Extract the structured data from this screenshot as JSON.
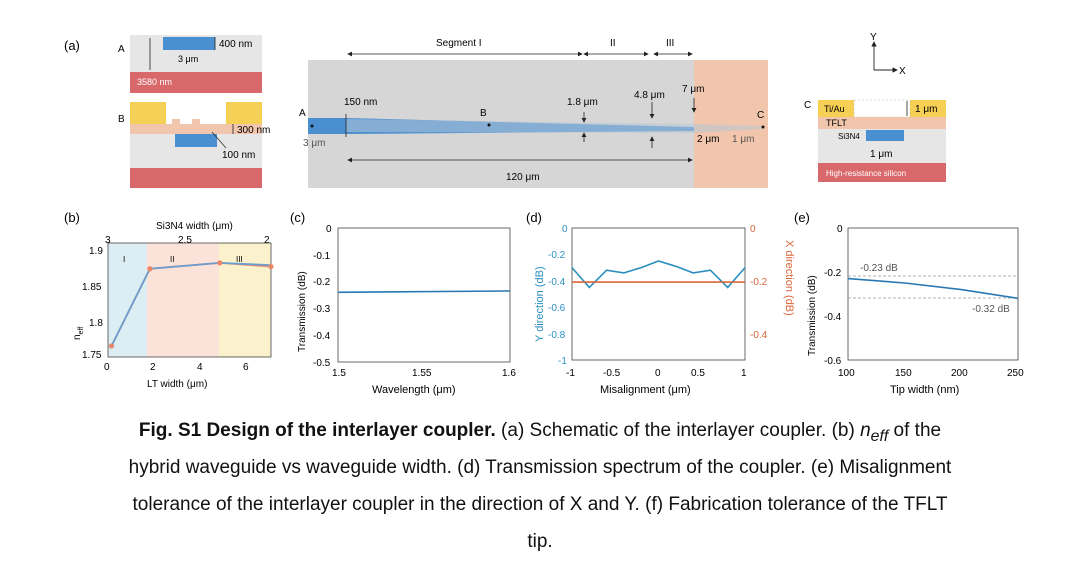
{
  "panel_a": {
    "label": "(a)",
    "cross_section_A": {
      "letter": "A",
      "dim_400": "400 nm",
      "dim_3um": "3 μm",
      "dim_3580": "3580 nm"
    },
    "cross_section_B": {
      "letter": "B",
      "dim_300": "300 nm",
      "dim_100": "100 nm"
    },
    "cross_section_C": {
      "letter": "C",
      "tiau": "Ti/Au",
      "tflt": "TFLT",
      "si3n4": "Si3N4",
      "dim_1um_top": "1 μm",
      "dim_1um": "1 μm",
      "substrate": "High-resistance silicon"
    },
    "top_view": {
      "segment_I": "Segment I",
      "segment_II": "II",
      "segment_III": "III",
      "dim_150nm": "150 nm",
      "dim_1_8": "1.8 μm",
      "dim_4_8": "4.8 μm",
      "dim_7": "7 μm",
      "dim_3um": "3 μm",
      "dim_2um": "2 μm",
      "dim_1um": "1 μm",
      "dim_120": "120 μm",
      "point_A": "A",
      "point_B": "B",
      "point_C": "C"
    },
    "axes": {
      "x": "X",
      "y": "Y"
    }
  },
  "panel_b": {
    "label": "(b)",
    "xlabel": "LT width (μm)",
    "top_label": "Si3N4 width (μm)",
    "xticks": [
      "0",
      "2",
      "4",
      "6"
    ],
    "top_ticks": [
      "3",
      "2.5",
      "2"
    ],
    "yticks": [
      "1.75",
      "1.8",
      "1.85",
      "1.9"
    ],
    "regions": [
      "I",
      "II",
      "III"
    ]
  },
  "panel_c": {
    "label": "(c)",
    "xlabel": "Wavelength (μm)",
    "ylabel": "Transmission (dB)",
    "xticks": [
      "1.5",
      "1.55",
      "1.6"
    ],
    "yticks": [
      "0",
      "-0.1",
      "-0.2",
      "-0.3",
      "-0.4",
      "-0.5"
    ]
  },
  "panel_d": {
    "label": "(d)",
    "xlabel": "Misalignment (μm)",
    "ylabel_left": "Y direction (dB)",
    "ylabel_right": "X direction (dB)",
    "xticks": [
      "-1",
      "-0.5",
      "0",
      "0.5",
      "1"
    ],
    "yticks_left": [
      "0",
      "-0.2",
      "-0.4",
      "-0.6",
      "-0.8",
      "-1"
    ],
    "yticks_right": [
      "0",
      "-0.2",
      "-0.4"
    ]
  },
  "panel_e": {
    "label": "(e)",
    "xlabel": "Tip width (nm)",
    "ylabel": "Transmission (dB)",
    "xticks": [
      "100",
      "150",
      "200",
      "250"
    ],
    "yticks": [
      "0",
      "-0.2",
      "-0.4",
      "-0.6"
    ],
    "annot_top": "-0.23 dB",
    "annot_bottom": "-0.32 dB"
  },
  "chart_data": [
    {
      "type": "line",
      "panel": "b",
      "x": [
        0.15,
        1.8,
        4.8,
        7.0
      ],
      "series": [
        {
          "color": "#e8866a",
          "y": [
            1.76,
            1.865,
            1.873,
            1.868
          ]
        },
        {
          "color": "#6a9ed0",
          "y": [
            1.76,
            1.865,
            1.873,
            1.87
          ]
        }
      ],
      "xlim": [
        0,
        7
      ],
      "ylim": [
        1.745,
        1.9
      ],
      "color_accent": "#e8866a"
    },
    {
      "type": "line",
      "panel": "c",
      "x": [
        1.5,
        1.6
      ],
      "y": [
        -0.24,
        -0.235
      ],
      "xlim": [
        1.5,
        1.6
      ],
      "ylim": [
        -0.5,
        0
      ],
      "color": "#2878b5"
    },
    {
      "type": "line",
      "panel": "d",
      "x": [
        -1,
        -0.8,
        -0.6,
        -0.4,
        -0.2,
        0,
        0.2,
        0.4,
        0.6,
        0.8,
        1
      ],
      "series": [
        {
          "axis": "left",
          "color": "#2a8fbf",
          "y": [
            -0.3,
            -0.45,
            -0.32,
            -0.34,
            -0.3,
            -0.25,
            -0.29,
            -0.34,
            -0.32,
            -0.45,
            -0.3
          ]
        },
        {
          "axis": "right",
          "color": "#d9663a",
          "y": [
            -0.205,
            -0.205,
            -0.205,
            -0.205,
            -0.205,
            -0.205,
            -0.205,
            -0.205,
            -0.205,
            -0.205,
            -0.205
          ]
        }
      ],
      "xlim": [
        -1,
        1
      ],
      "ylim_left": [
        -1,
        0
      ],
      "ylim_right": [
        -0.5,
        0
      ]
    },
    {
      "type": "line",
      "panel": "e",
      "x": [
        100,
        150,
        200,
        250
      ],
      "y": [
        -0.23,
        -0.25,
        -0.28,
        -0.32
      ],
      "xlim": [
        100,
        250
      ],
      "ylim": [
        -0.6,
        0
      ],
      "color": "#2878b5"
    }
  ],
  "caption": {
    "title": "Fig. S1 Design of the interlayer coupler.",
    "text_a": " (a) Schematic of the interlayer coupler. (b) ",
    "neff": "n",
    "neff_sub": "eff",
    "text_b": " of the",
    "line2": "hybrid waveguide vs waveguide width. (d) Transmission spectrum of the coupler. (e) Misalignment",
    "line3": "tolerance of the interlayer coupler in the direction of X and Y. (f) Fabrication tolerance of the TFLT",
    "line4": "tip."
  }
}
